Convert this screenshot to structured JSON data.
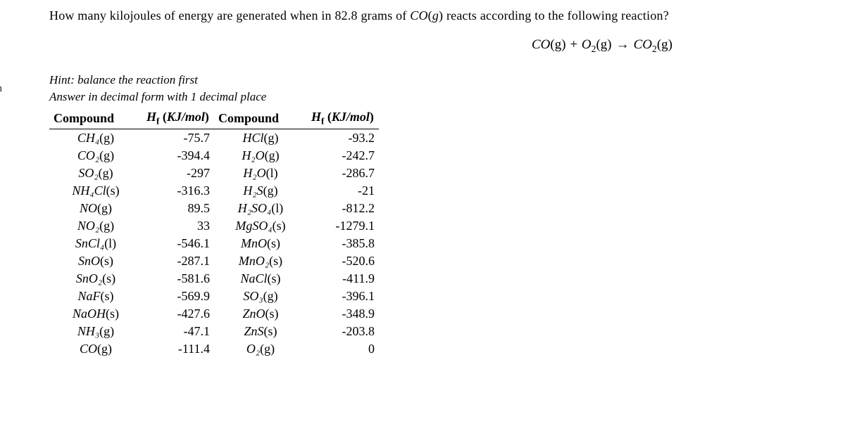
{
  "side_label": "on",
  "question": "How many kilojoules of energy are generated when in 82.8 grams of CO(g) reacts according to the following reaction?",
  "equation": "CO(g) + O₂(g) → CO₂(g)",
  "hint": "Hint: balance the reaction first",
  "answer_instr": "Answer in decimal form with 1 decimal place",
  "table": {
    "headers": {
      "c1": "Compound",
      "h1": "H_f (KJ/mol)",
      "c2": "Compound",
      "h2": "H_f (KJ/mol)"
    },
    "rows": [
      {
        "c1": "CH₄(g)",
        "v1": "-75.7",
        "c2": "HCl(g)",
        "v2": "-93.2"
      },
      {
        "c1": "CO₂(g)",
        "v1": "-394.4",
        "c2": "H₂O(g)",
        "v2": "-242.7"
      },
      {
        "c1": "SO₂(g)",
        "v1": "-297",
        "c2": "H₂O(l)",
        "v2": "-286.7"
      },
      {
        "c1": "NH₄Cl(s)",
        "v1": "-316.3",
        "c2": "H₂S(g)",
        "v2": "-21"
      },
      {
        "c1": "NO(g)",
        "v1": "89.5",
        "c2": "H₂SO₄(l)",
        "v2": "-812.2"
      },
      {
        "c1": "NO₂(g)",
        "v1": "33",
        "c2": "MgSO₄(s)",
        "v2": "-1279.1"
      },
      {
        "c1": "SnCl₄(l)",
        "v1": "-546.1",
        "c2": "MnO(s)",
        "v2": "-385.8"
      },
      {
        "c1": "SnO(s)",
        "v1": "-287.1",
        "c2": "MnO₂(s)",
        "v2": "-520.6"
      },
      {
        "c1": "SnO₂(s)",
        "v1": "-581.6",
        "c2": "NaCl(s)",
        "v2": "-411.9"
      },
      {
        "c1": "NaF(s)",
        "v1": "-569.9",
        "c2": "SO₃(g)",
        "v2": "-396.1"
      },
      {
        "c1": "NaOH(s)",
        "v1": "-427.6",
        "c2": "ZnO(s)",
        "v2": "-348.9"
      },
      {
        "c1": "NH₃(g)",
        "v1": "-47.1",
        "c2": "ZnS(s)",
        "v2": "-203.8"
      },
      {
        "c1": "CO(g)",
        "v1": "-111.4",
        "c2": "O₂(g)",
        "v2": "0"
      }
    ]
  }
}
